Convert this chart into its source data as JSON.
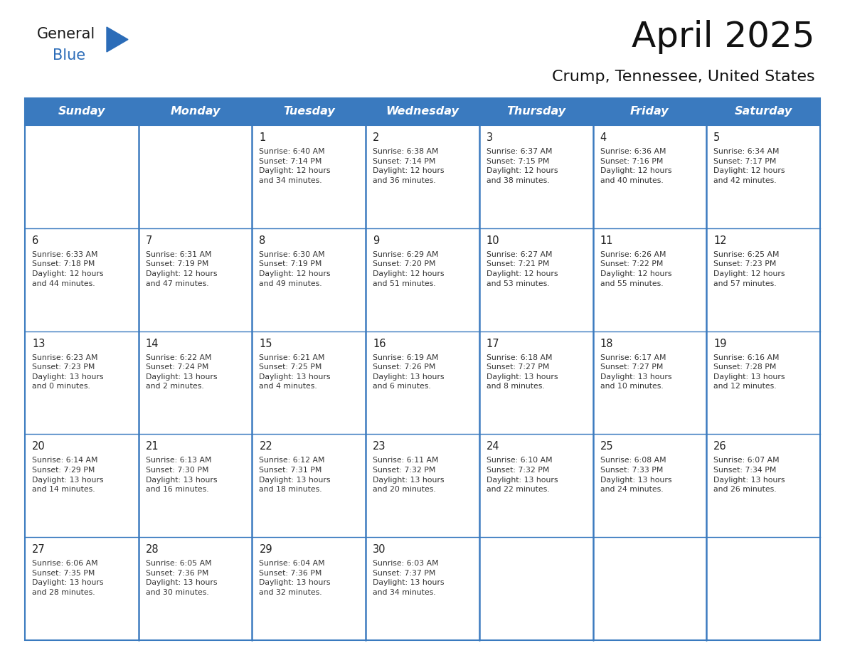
{
  "title": "April 2025",
  "subtitle": "Crump, Tennessee, United States",
  "header_color": "#3a7abf",
  "header_text_color": "#ffffff",
  "cell_bg_white": "#ffffff",
  "cell_bg_gray": "#f5f5f5",
  "border_color": "#3a7abf",
  "text_color": "#333333",
  "days_of_week": [
    "Sunday",
    "Monday",
    "Tuesday",
    "Wednesday",
    "Thursday",
    "Friday",
    "Saturday"
  ],
  "weeks": [
    [
      {
        "day": "",
        "info": ""
      },
      {
        "day": "",
        "info": ""
      },
      {
        "day": "1",
        "info": "Sunrise: 6:40 AM\nSunset: 7:14 PM\nDaylight: 12 hours\nand 34 minutes."
      },
      {
        "day": "2",
        "info": "Sunrise: 6:38 AM\nSunset: 7:14 PM\nDaylight: 12 hours\nand 36 minutes."
      },
      {
        "day": "3",
        "info": "Sunrise: 6:37 AM\nSunset: 7:15 PM\nDaylight: 12 hours\nand 38 minutes."
      },
      {
        "day": "4",
        "info": "Sunrise: 6:36 AM\nSunset: 7:16 PM\nDaylight: 12 hours\nand 40 minutes."
      },
      {
        "day": "5",
        "info": "Sunrise: 6:34 AM\nSunset: 7:17 PM\nDaylight: 12 hours\nand 42 minutes."
      }
    ],
    [
      {
        "day": "6",
        "info": "Sunrise: 6:33 AM\nSunset: 7:18 PM\nDaylight: 12 hours\nand 44 minutes."
      },
      {
        "day": "7",
        "info": "Sunrise: 6:31 AM\nSunset: 7:19 PM\nDaylight: 12 hours\nand 47 minutes."
      },
      {
        "day": "8",
        "info": "Sunrise: 6:30 AM\nSunset: 7:19 PM\nDaylight: 12 hours\nand 49 minutes."
      },
      {
        "day": "9",
        "info": "Sunrise: 6:29 AM\nSunset: 7:20 PM\nDaylight: 12 hours\nand 51 minutes."
      },
      {
        "day": "10",
        "info": "Sunrise: 6:27 AM\nSunset: 7:21 PM\nDaylight: 12 hours\nand 53 minutes."
      },
      {
        "day": "11",
        "info": "Sunrise: 6:26 AM\nSunset: 7:22 PM\nDaylight: 12 hours\nand 55 minutes."
      },
      {
        "day": "12",
        "info": "Sunrise: 6:25 AM\nSunset: 7:23 PM\nDaylight: 12 hours\nand 57 minutes."
      }
    ],
    [
      {
        "day": "13",
        "info": "Sunrise: 6:23 AM\nSunset: 7:23 PM\nDaylight: 13 hours\nand 0 minutes."
      },
      {
        "day": "14",
        "info": "Sunrise: 6:22 AM\nSunset: 7:24 PM\nDaylight: 13 hours\nand 2 minutes."
      },
      {
        "day": "15",
        "info": "Sunrise: 6:21 AM\nSunset: 7:25 PM\nDaylight: 13 hours\nand 4 minutes."
      },
      {
        "day": "16",
        "info": "Sunrise: 6:19 AM\nSunset: 7:26 PM\nDaylight: 13 hours\nand 6 minutes."
      },
      {
        "day": "17",
        "info": "Sunrise: 6:18 AM\nSunset: 7:27 PM\nDaylight: 13 hours\nand 8 minutes."
      },
      {
        "day": "18",
        "info": "Sunrise: 6:17 AM\nSunset: 7:27 PM\nDaylight: 13 hours\nand 10 minutes."
      },
      {
        "day": "19",
        "info": "Sunrise: 6:16 AM\nSunset: 7:28 PM\nDaylight: 13 hours\nand 12 minutes."
      }
    ],
    [
      {
        "day": "20",
        "info": "Sunrise: 6:14 AM\nSunset: 7:29 PM\nDaylight: 13 hours\nand 14 minutes."
      },
      {
        "day": "21",
        "info": "Sunrise: 6:13 AM\nSunset: 7:30 PM\nDaylight: 13 hours\nand 16 minutes."
      },
      {
        "day": "22",
        "info": "Sunrise: 6:12 AM\nSunset: 7:31 PM\nDaylight: 13 hours\nand 18 minutes."
      },
      {
        "day": "23",
        "info": "Sunrise: 6:11 AM\nSunset: 7:32 PM\nDaylight: 13 hours\nand 20 minutes."
      },
      {
        "day": "24",
        "info": "Sunrise: 6:10 AM\nSunset: 7:32 PM\nDaylight: 13 hours\nand 22 minutes."
      },
      {
        "day": "25",
        "info": "Sunrise: 6:08 AM\nSunset: 7:33 PM\nDaylight: 13 hours\nand 24 minutes."
      },
      {
        "day": "26",
        "info": "Sunrise: 6:07 AM\nSunset: 7:34 PM\nDaylight: 13 hours\nand 26 minutes."
      }
    ],
    [
      {
        "day": "27",
        "info": "Sunrise: 6:06 AM\nSunset: 7:35 PM\nDaylight: 13 hours\nand 28 minutes."
      },
      {
        "day": "28",
        "info": "Sunrise: 6:05 AM\nSunset: 7:36 PM\nDaylight: 13 hours\nand 30 minutes."
      },
      {
        "day": "29",
        "info": "Sunrise: 6:04 AM\nSunset: 7:36 PM\nDaylight: 13 hours\nand 32 minutes."
      },
      {
        "day": "30",
        "info": "Sunrise: 6:03 AM\nSunset: 7:37 PM\nDaylight: 13 hours\nand 34 minutes."
      },
      {
        "day": "",
        "info": ""
      },
      {
        "day": "",
        "info": ""
      },
      {
        "day": "",
        "info": ""
      }
    ]
  ],
  "logo_general_color": "#1a1a1a",
  "logo_blue_color": "#2b6cb8",
  "fig_width": 11.88,
  "fig_height": 9.18
}
